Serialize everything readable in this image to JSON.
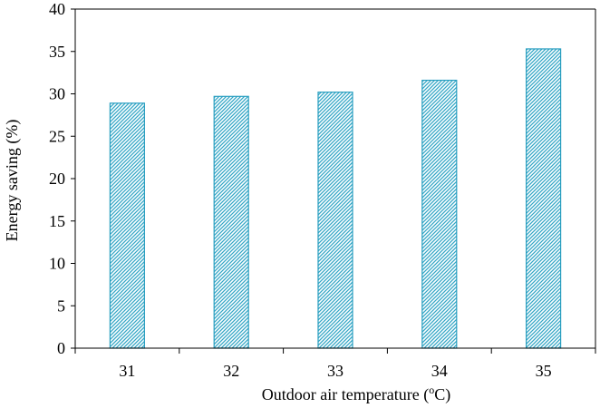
{
  "chart_data": {
    "type": "bar",
    "categories": [
      "31",
      "32",
      "33",
      "34",
      "35"
    ],
    "values": [
      28.9,
      29.7,
      30.2,
      31.6,
      35.3
    ],
    "title": "",
    "xlabel": "Outdoor air temperature (",
    "xlabel_superscript": "o",
    "xlabel_suffix": "C)",
    "ylabel": "Energy saving (%)",
    "ylim": [
      0,
      40
    ],
    "yticks": [
      "0",
      "5",
      "10",
      "15",
      "20",
      "25",
      "30",
      "35",
      "40"
    ],
    "grid": false,
    "legend": "none",
    "bar_stroke_color": "#2a9fc0",
    "bar_hatch_color": "#33a6c6"
  }
}
